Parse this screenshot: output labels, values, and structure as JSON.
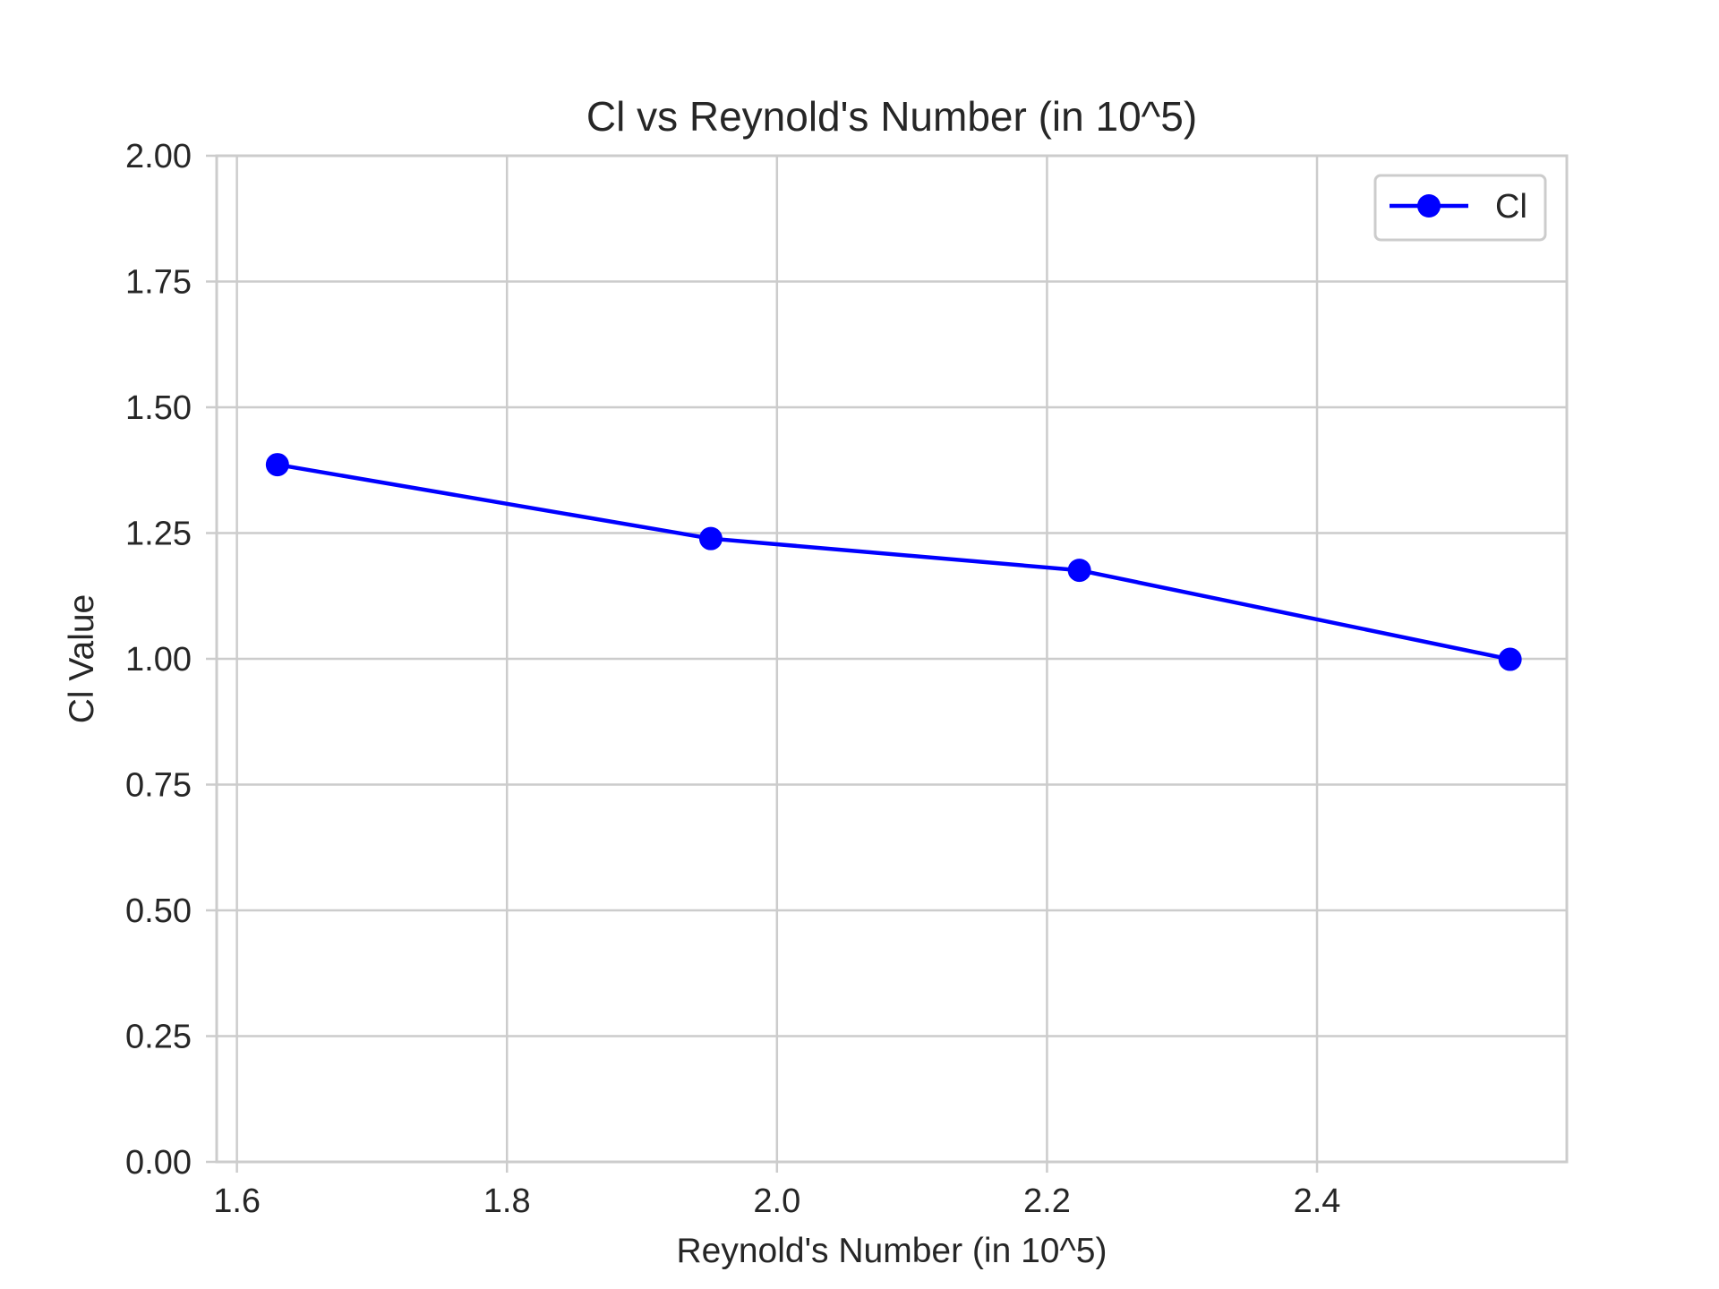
{
  "chart_data": {
    "type": "line",
    "title": "Cl vs Reynold's Number (in 10^5)",
    "xlabel": "Reynold's Number (in 10^5)",
    "ylabel": "Cl Value",
    "xlim": [
      1.585,
      2.585
    ],
    "ylim": [
      0.0,
      2.0
    ],
    "x_ticks": [
      1.6,
      1.8,
      2.0,
      2.2,
      2.4
    ],
    "x_tick_labels": [
      "1.6",
      "1.8",
      "2.0",
      "2.2",
      "2.4"
    ],
    "y_ticks": [
      0.0,
      0.25,
      0.5,
      0.75,
      1.0,
      1.25,
      1.5,
      1.75,
      2.0
    ],
    "y_tick_labels": [
      "0.00",
      "0.25",
      "0.50",
      "0.75",
      "1.00",
      "1.25",
      "1.50",
      "1.75",
      "2.00"
    ],
    "grid": true,
    "legend_position": "top-right",
    "series": [
      {
        "name": "Cl",
        "color": "#0000ff",
        "marker": "circle",
        "x": [
          1.63,
          1.951,
          2.224,
          2.543
        ],
        "y": [
          1.386,
          1.239,
          1.176,
          0.999
        ]
      }
    ]
  }
}
